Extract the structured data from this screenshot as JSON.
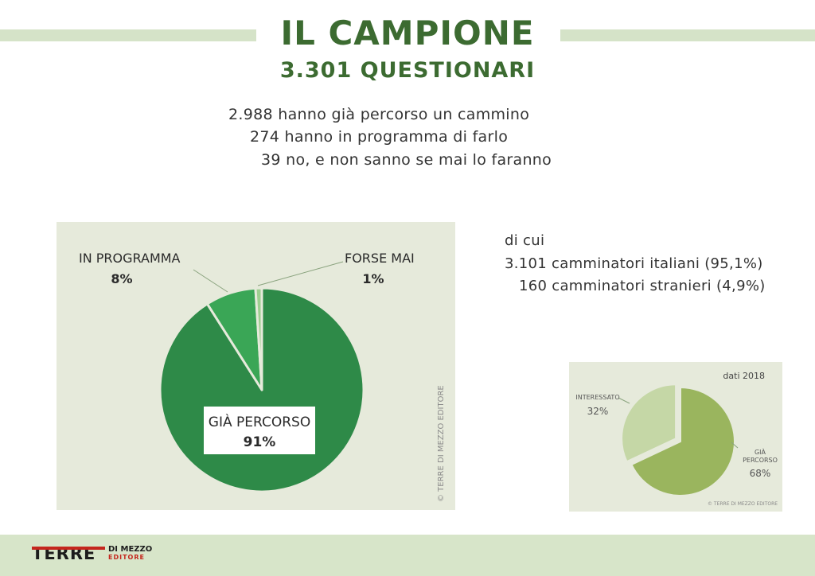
{
  "header": {
    "title": "IL CAMPIONE",
    "subtitle": "3.301 QUESTIONARI"
  },
  "summary": {
    "lines": [
      "2.988 hanno già percorso un cammino",
      "274 hanno in programma di farlo",
      "39 no, e non sanno se mai lo faranno"
    ]
  },
  "breakdown": {
    "lines": [
      "di cui",
      "3.101 camminatori italiani (95,1%)",
      "160 camminatori stranieri (4,9%)"
    ]
  },
  "chart_data": [
    {
      "type": "pie",
      "categories": [
        "GIÀ PERCORSO",
        "IN PROGRAMMA",
        "FORSE MAI"
      ],
      "values": [
        91,
        8,
        1
      ],
      "value_labels": [
        "91%",
        "8%",
        "1%"
      ],
      "colors": [
        "#2e8a48",
        "#3aa656",
        "#9ecf90"
      ],
      "watermark": "© TERRE DI MEZZO EDITORE"
    },
    {
      "type": "pie",
      "title": "dati 2018",
      "categories": [
        "GIÀ PERCORSO",
        "INTERESSATO"
      ],
      "category_lines": [
        [
          "GIÀ",
          "PERCORSO"
        ],
        [
          "INTERESSATO"
        ]
      ],
      "values": [
        68,
        32
      ],
      "value_labels": [
        "68%",
        "32%"
      ],
      "colors": [
        "#9ab55e",
        "#c5d7a6"
      ],
      "watermark": "© TERRE DI MEZZO EDITORE"
    }
  ],
  "footer": {
    "logo_main": "TERRE",
    "logo_sub1": "DI MEZZO",
    "logo_sub2": "EDITORE"
  }
}
